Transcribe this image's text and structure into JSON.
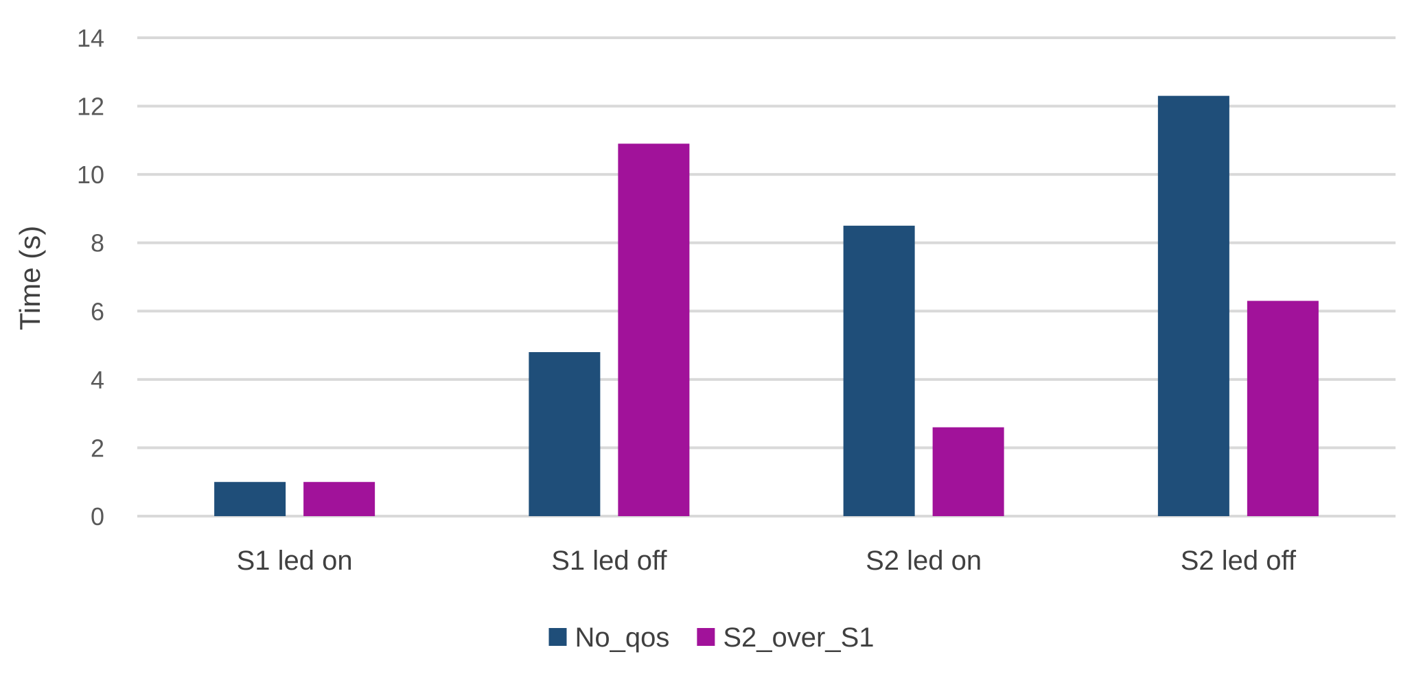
{
  "chart_data": {
    "type": "bar",
    "title": "",
    "xlabel": "",
    "ylabel": "Time (s)",
    "ylim": [
      0,
      14
    ],
    "yticks": [
      0,
      2,
      4,
      6,
      8,
      10,
      12,
      14
    ],
    "grid": true,
    "legend_position": "bottom",
    "categories": [
      "S1 led on",
      "S1 led off",
      "S2 led on",
      "S2 led off"
    ],
    "series": [
      {
        "name": "No_qos",
        "color": "#1f4e79",
        "values": [
          1.0,
          4.8,
          8.5,
          12.3
        ]
      },
      {
        "name": "S2_over_S1",
        "color": "#a1129a",
        "values": [
          1.0,
          10.9,
          2.6,
          6.3
        ]
      }
    ]
  }
}
